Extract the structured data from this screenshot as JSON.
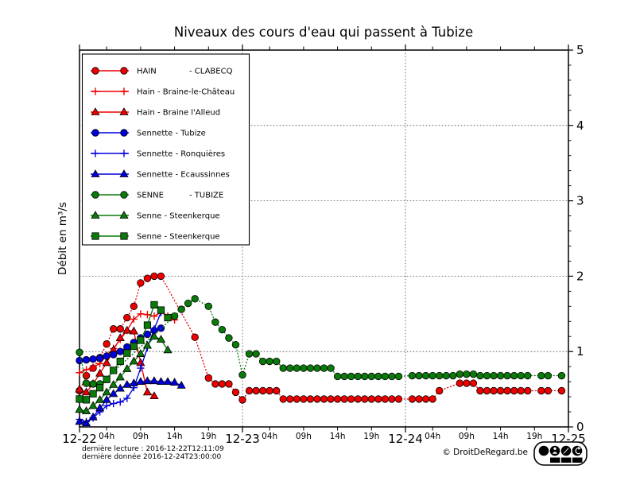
{
  "header": {
    "title": "Niveaux des cours d'eau qui passent à Tubize"
  },
  "axes": {
    "ylabel": "Débit en m³/s",
    "yticks": [
      "0",
      "1",
      "2",
      "3",
      "4",
      "5"
    ],
    "day_ticks": [
      {
        "hour": 0,
        "label": "12-22"
      },
      {
        "hour": 24,
        "label": "12-23"
      },
      {
        "hour": 48,
        "label": "12-24"
      },
      {
        "hour": 72,
        "label": "12-25"
      }
    ],
    "hour_ticks": [
      {
        "hour": 4,
        "label": "04h"
      },
      {
        "hour": 9,
        "label": "09h"
      },
      {
        "hour": 14,
        "label": "14h"
      },
      {
        "hour": 19,
        "label": "19h"
      },
      {
        "hour": 28,
        "label": "04h"
      },
      {
        "hour": 33,
        "label": "09h"
      },
      {
        "hour": 38,
        "label": "14h"
      },
      {
        "hour": 43,
        "label": "19h"
      },
      {
        "hour": 52,
        "label": "04h"
      },
      {
        "hour": 57,
        "label": "09h"
      },
      {
        "hour": 62,
        "label": "14h"
      },
      {
        "hour": 67,
        "label": "19h"
      }
    ]
  },
  "legend": {
    "items": [
      {
        "parts": [
          "HAIN",
          "- CLABECQ"
        ],
        "two_col": true
      },
      {
        "parts": [
          "Hain - Braine-le-Château"
        ],
        "two_col": false
      },
      {
        "parts": [
          "Hain - Braine l'Alleud"
        ],
        "two_col": false
      },
      {
        "parts": [
          "Sennette - Tubize"
        ],
        "two_col": false
      },
      {
        "parts": [
          "Sennette - Ronquières"
        ],
        "two_col": false
      },
      {
        "parts": [
          "Sennette - Ecaussinnes"
        ],
        "two_col": false
      },
      {
        "parts": [
          "SENNE",
          "- TUBIZE"
        ],
        "two_col": true
      },
      {
        "parts": [
          "Senne - Steenkerque"
        ],
        "two_col": false
      },
      {
        "parts": [
          "Senne - Steenkerque"
        ],
        "two_col": false
      }
    ]
  },
  "footer": {
    "line1": "dernière lecture : 2016-12-22T12:11:09",
    "line2": "dernière donnée  2016-12-24T23:00:00",
    "copyright": "© DroitDeRegard.be",
    "license_labels": [
      "BY",
      "NC",
      "SA"
    ]
  },
  "colors": {
    "red": "#ee0000",
    "green": "#0a7a0a",
    "blue": "#0000dd",
    "axis": "#000000",
    "grid": "#444444"
  },
  "chart_data": {
    "type": "line",
    "title": "Niveaux des cours d'eau qui passent à Tubize",
    "xlabel": "",
    "ylabel": "Débit en m³/s",
    "ylim": [
      0,
      5
    ],
    "x_hours_range": [
      0,
      72
    ],
    "x_axis_days": [
      "12-22",
      "12-23",
      "12-24",
      "12-25"
    ],
    "grid": {
      "h_lines": [
        1,
        2,
        3,
        4
      ],
      "v_lines_hours": [
        24,
        48
      ]
    },
    "legend_position": "upper left",
    "y_minor_step": 0.2,
    "series": [
      {
        "name": "HAIN - CLABECQ",
        "color": "#ee0000",
        "marker": "circle",
        "line_style": "dotted",
        "points": [
          [
            0,
            0.48
          ],
          [
            1,
            0.68
          ],
          [
            2,
            0.78
          ],
          [
            3,
            0.92
          ],
          [
            4,
            1.1
          ],
          [
            5,
            1.3
          ],
          [
            6,
            1.3
          ],
          [
            7,
            1.45
          ],
          [
            8,
            1.6
          ],
          [
            9,
            1.91
          ],
          [
            10,
            1.97
          ],
          [
            11,
            2.0
          ],
          [
            12,
            2.0
          ],
          [
            17,
            1.19
          ],
          [
            19,
            0.65
          ],
          [
            20,
            0.57
          ],
          [
            21,
            0.57
          ],
          [
            22,
            0.57
          ],
          [
            23,
            0.46
          ],
          [
            24,
            0.36
          ],
          [
            25,
            0.48
          ],
          [
            26,
            0.48
          ],
          [
            27,
            0.48
          ],
          [
            28,
            0.48
          ],
          [
            29,
            0.48
          ],
          [
            30,
            0.37
          ],
          [
            31,
            0.37
          ],
          [
            32,
            0.37
          ],
          [
            33,
            0.37
          ],
          [
            34,
            0.37
          ],
          [
            35,
            0.37
          ],
          [
            36,
            0.37
          ],
          [
            37,
            0.37
          ],
          [
            38,
            0.37
          ],
          [
            39,
            0.37
          ],
          [
            40,
            0.37
          ],
          [
            41,
            0.37
          ],
          [
            42,
            0.37
          ],
          [
            43,
            0.37
          ],
          [
            44,
            0.37
          ],
          [
            45,
            0.37
          ],
          [
            46,
            0.37
          ],
          [
            47,
            0.37
          ],
          [
            49,
            0.37
          ],
          [
            50,
            0.37
          ],
          [
            51,
            0.37
          ],
          [
            52,
            0.37
          ],
          [
            53,
            0.48
          ],
          [
            56,
            0.58
          ],
          [
            57,
            0.58
          ],
          [
            58,
            0.58
          ],
          [
            59,
            0.48
          ],
          [
            60,
            0.48
          ],
          [
            61,
            0.48
          ],
          [
            62,
            0.48
          ],
          [
            63,
            0.48
          ],
          [
            64,
            0.48
          ],
          [
            65,
            0.48
          ],
          [
            66,
            0.48
          ],
          [
            68,
            0.48
          ],
          [
            69,
            0.48
          ],
          [
            71,
            0.48
          ]
        ]
      },
      {
        "name": "Hain - Braine-le-Château",
        "color": "#ee0000",
        "marker": "plus",
        "line_style": "solid",
        "points": [
          [
            0,
            0.72
          ],
          [
            1,
            0.76
          ],
          [
            2,
            0.79
          ],
          [
            3,
            0.84
          ],
          [
            4,
            0.95
          ],
          [
            5,
            1.04
          ],
          [
            6,
            1.16
          ],
          [
            7,
            1.28
          ],
          [
            8,
            1.43
          ],
          [
            9,
            1.5
          ],
          [
            10,
            1.49
          ],
          [
            11,
            1.47
          ],
          [
            12,
            1.52
          ],
          [
            13,
            1.47
          ],
          [
            14,
            1.42
          ]
        ]
      },
      {
        "name": "Hain - Braine l'Alleud",
        "color": "#ee0000",
        "marker": "triangle",
        "line_style": "solid",
        "points": [
          [
            0,
            0.5
          ],
          [
            1,
            0.46
          ],
          [
            2,
            0.57
          ],
          [
            3,
            0.71
          ],
          [
            4,
            0.85
          ],
          [
            5,
            1.02
          ],
          [
            6,
            1.18
          ],
          [
            7,
            1.28
          ],
          [
            8,
            1.27
          ],
          [
            9,
            0.85
          ],
          [
            10,
            0.46
          ],
          [
            11,
            0.41
          ]
        ]
      },
      {
        "name": "Sennette - Tubize",
        "color": "#0000dd",
        "marker": "circle",
        "line_style": "solid",
        "points": [
          [
            0,
            0.88
          ],
          [
            1,
            0.89
          ],
          [
            2,
            0.9
          ],
          [
            3,
            0.91
          ],
          [
            4,
            0.94
          ],
          [
            5,
            0.96
          ],
          [
            6,
            1.0
          ],
          [
            7,
            1.06
          ],
          [
            8,
            1.12
          ],
          [
            9,
            1.18
          ],
          [
            10,
            1.23
          ],
          [
            11,
            1.28
          ],
          [
            12,
            1.31
          ]
        ]
      },
      {
        "name": "Sennette - Ronquières",
        "color": "#0000dd",
        "marker": "plus",
        "line_style": "solid",
        "points": [
          [
            0,
            0.1
          ],
          [
            1,
            0.07
          ],
          [
            2,
            0.12
          ],
          [
            3,
            0.2
          ],
          [
            4,
            0.28
          ],
          [
            5,
            0.31
          ],
          [
            6,
            0.33
          ],
          [
            7,
            0.38
          ],
          [
            8,
            0.52
          ],
          [
            9,
            0.78
          ],
          [
            10,
            1.05
          ],
          [
            11,
            1.3
          ],
          [
            12,
            1.52
          ]
        ]
      },
      {
        "name": "Sennette - Ecaussinnes",
        "color": "#0000dd",
        "marker": "triangle",
        "line_style": "solid",
        "points": [
          [
            0,
            0.07
          ],
          [
            1,
            0.05
          ],
          [
            2,
            0.13
          ],
          [
            3,
            0.25
          ],
          [
            4,
            0.36
          ],
          [
            5,
            0.44
          ],
          [
            6,
            0.51
          ],
          [
            7,
            0.56
          ],
          [
            8,
            0.58
          ],
          [
            9,
            0.6
          ],
          [
            10,
            0.61
          ],
          [
            11,
            0.61
          ],
          [
            12,
            0.6
          ],
          [
            13,
            0.6
          ],
          [
            14,
            0.59
          ],
          [
            15,
            0.55
          ]
        ]
      },
      {
        "name": "SENNE - TUBIZE",
        "color": "#0a7a0a",
        "marker": "circle",
        "line_style": "dotted",
        "points": [
          [
            0,
            0.99
          ],
          [
            1,
            0.58
          ],
          [
            2,
            0.57
          ],
          [
            3,
            0.57
          ],
          [
            14,
            1.47
          ],
          [
            15,
            1.56
          ],
          [
            16,
            1.64
          ],
          [
            17,
            1.7
          ],
          [
            19,
            1.6
          ],
          [
            20,
            1.39
          ],
          [
            21,
            1.29
          ],
          [
            22,
            1.18
          ],
          [
            23,
            1.09
          ],
          [
            24,
            0.69
          ],
          [
            25,
            0.97
          ],
          [
            26,
            0.97
          ],
          [
            27,
            0.87
          ],
          [
            28,
            0.87
          ],
          [
            29,
            0.87
          ],
          [
            30,
            0.78
          ],
          [
            31,
            0.78
          ],
          [
            32,
            0.78
          ],
          [
            33,
            0.78
          ],
          [
            34,
            0.78
          ],
          [
            35,
            0.78
          ],
          [
            36,
            0.78
          ],
          [
            37,
            0.78
          ],
          [
            38,
            0.67
          ],
          [
            39,
            0.67
          ],
          [
            40,
            0.67
          ],
          [
            41,
            0.67
          ],
          [
            42,
            0.67
          ],
          [
            43,
            0.67
          ],
          [
            44,
            0.67
          ],
          [
            45,
            0.67
          ],
          [
            46,
            0.67
          ],
          [
            47,
            0.67
          ],
          [
            49,
            0.68
          ],
          [
            50,
            0.68
          ],
          [
            51,
            0.68
          ],
          [
            52,
            0.68
          ],
          [
            53,
            0.68
          ],
          [
            54,
            0.68
          ],
          [
            55,
            0.68
          ],
          [
            56,
            0.7
          ],
          [
            57,
            0.7
          ],
          [
            58,
            0.7
          ],
          [
            59,
            0.68
          ],
          [
            60,
            0.68
          ],
          [
            61,
            0.68
          ],
          [
            62,
            0.68
          ],
          [
            63,
            0.68
          ],
          [
            64,
            0.68
          ],
          [
            65,
            0.68
          ],
          [
            66,
            0.68
          ],
          [
            68,
            0.68
          ],
          [
            69,
            0.68
          ],
          [
            71,
            0.68
          ]
        ]
      },
      {
        "name": "Senne - Steenkerque",
        "color": "#0a7a0a",
        "marker": "triangle",
        "line_style": "solid",
        "points": [
          [
            0,
            0.23
          ],
          [
            1,
            0.21
          ],
          [
            2,
            0.28
          ],
          [
            3,
            0.36
          ],
          [
            4,
            0.46
          ],
          [
            5,
            0.56
          ],
          [
            6,
            0.66
          ],
          [
            7,
            0.77
          ],
          [
            8,
            0.87
          ],
          [
            9,
            0.97
          ],
          [
            10,
            1.08
          ],
          [
            11,
            1.2
          ],
          [
            12,
            1.16
          ],
          [
            13,
            1.02
          ]
        ]
      },
      {
        "name": "Senne - Steenkerque",
        "color": "#0a7a0a",
        "marker": "square",
        "line_style": "solid",
        "points": [
          [
            0,
            0.37
          ],
          [
            1,
            0.36
          ],
          [
            2,
            0.44
          ],
          [
            3,
            0.52
          ],
          [
            4,
            0.63
          ],
          [
            5,
            0.75
          ],
          [
            6,
            0.87
          ],
          [
            7,
            0.98
          ],
          [
            8,
            1.07
          ],
          [
            9,
            1.15
          ],
          [
            10,
            1.35
          ],
          [
            11,
            1.62
          ],
          [
            12,
            1.55
          ],
          [
            13,
            1.45
          ]
        ]
      }
    ]
  }
}
